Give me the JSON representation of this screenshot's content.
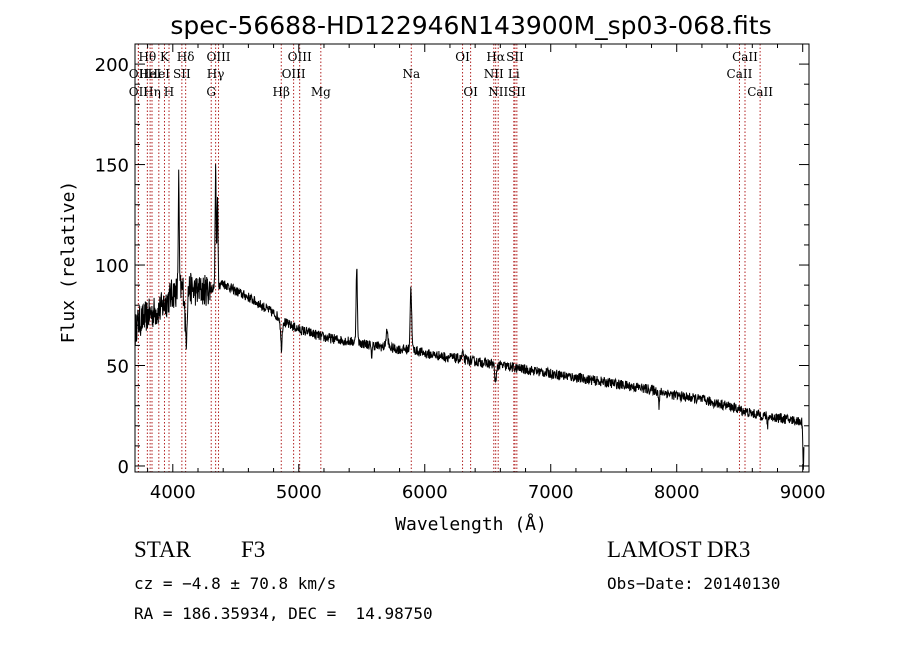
{
  "chart_data": {
    "type": "line",
    "title": "spec-56688-HD122946N143900M_sp03-068.fits",
    "xlabel": "Wavelength (Å)",
    "ylabel": "Flux (relative)",
    "xlim": [
      3700,
      9050
    ],
    "ylim": [
      -3,
      210
    ],
    "xticks": [
      4000,
      5000,
      6000,
      7000,
      8000,
      9000
    ],
    "yticks": [
      0,
      50,
      100,
      150,
      200
    ],
    "continuum": [
      [
        3700,
        70
      ],
      [
        3800,
        75
      ],
      [
        3900,
        78
      ],
      [
        4000,
        86
      ],
      [
        4100,
        89
      ],
      [
        4200,
        87
      ],
      [
        4300,
        88
      ],
      [
        4400,
        91
      ],
      [
        4500,
        87
      ],
      [
        4600,
        84
      ],
      [
        4700,
        80
      ],
      [
        4800,
        76
      ],
      [
        4900,
        71
      ],
      [
        5000,
        68
      ],
      [
        5100,
        66
      ],
      [
        5200,
        64
      ],
      [
        5300,
        63
      ],
      [
        5400,
        62
      ],
      [
        5500,
        61
      ],
      [
        5600,
        60
      ],
      [
        5700,
        59
      ],
      [
        5800,
        58
      ],
      [
        5900,
        58
      ],
      [
        6000,
        56
      ],
      [
        6100,
        55
      ],
      [
        6200,
        54
      ],
      [
        6300,
        53
      ],
      [
        6400,
        52
      ],
      [
        6500,
        51
      ],
      [
        6600,
        50
      ],
      [
        6700,
        49
      ],
      [
        6800,
        48
      ],
      [
        6900,
        47
      ],
      [
        7000,
        46
      ],
      [
        7200,
        44
      ],
      [
        7400,
        42
      ],
      [
        7600,
        40
      ],
      [
        7800,
        38
      ],
      [
        8000,
        35
      ],
      [
        8200,
        33
      ],
      [
        8400,
        30
      ],
      [
        8600,
        26
      ],
      [
        8800,
        24
      ],
      [
        9000,
        22
      ]
    ],
    "features": [
      [
        3700,
        -4,
        6
      ],
      [
        4047,
        55,
        4
      ],
      [
        4105,
        -25,
        8
      ],
      [
        4340,
        60,
        4
      ],
      [
        4355,
        45,
        4
      ],
      [
        4862,
        -14,
        6
      ],
      [
        5460,
        38,
        5
      ],
      [
        5577,
        -6,
        4
      ],
      [
        5700,
        8,
        8
      ],
      [
        5890,
        30,
        6
      ],
      [
        6300,
        4,
        4
      ],
      [
        6563,
        -10,
        6
      ],
      [
        7860,
        -8,
        4
      ],
      [
        8720,
        -5,
        4
      ],
      [
        9005,
        -22,
        4
      ]
    ],
    "noise": {
      "blue": 8,
      "red": 2.5,
      "break_wavelength": 4300
    },
    "line_markers": [
      {
        "wl": 3727,
        "label": "OII",
        "row": 2
      },
      {
        "wl": 3727,
        "label": "OII",
        "row": 3
      },
      {
        "wl": 3798,
        "label": "Hθ",
        "row": 1
      },
      {
        "wl": 3820,
        "label": "HeI",
        "row": 2
      },
      {
        "wl": 3835,
        "label": "Hη",
        "row": 3
      },
      {
        "wl": 3889,
        "label": "HeI",
        "row": 2
      },
      {
        "wl": 3934,
        "label": "K",
        "row": 1
      },
      {
        "wl": 3970,
        "label": "H",
        "row": 3
      },
      {
        "wl": 4072,
        "label": "SII",
        "row": 2
      },
      {
        "wl": 4102,
        "label": "Hδ",
        "row": 1
      },
      {
        "wl": 4305,
        "label": "G",
        "row": 3
      },
      {
        "wl": 4340,
        "label": "Hγ",
        "row": 2
      },
      {
        "wl": 4363,
        "label": "OIII",
        "row": 1
      },
      {
        "wl": 4861,
        "label": "Hβ",
        "row": 3
      },
      {
        "wl": 4959,
        "label": "OIII",
        "row": 2
      },
      {
        "wl": 5007,
        "label": "OIII",
        "row": 1
      },
      {
        "wl": 5175,
        "label": "Mg",
        "row": 3
      },
      {
        "wl": 5893,
        "label": "Na",
        "row": 2
      },
      {
        "wl": 6300,
        "label": "OI",
        "row": 1
      },
      {
        "wl": 6364,
        "label": "OI",
        "row": 3
      },
      {
        "wl": 6548,
        "label": "NII",
        "row": 2
      },
      {
        "wl": 6563,
        "label": "Hα",
        "row": 1
      },
      {
        "wl": 6583,
        "label": "NII",
        "row": 3
      },
      {
        "wl": 6707,
        "label": "Li",
        "row": 2
      },
      {
        "wl": 6716,
        "label": "SII",
        "row": 1
      },
      {
        "wl": 6731,
        "label": "SII",
        "row": 3
      },
      {
        "wl": 8498,
        "label": "CaII",
        "row": 2
      },
      {
        "wl": 8542,
        "label": "CaII",
        "row": 1
      },
      {
        "wl": 8662,
        "label": "CaII",
        "row": 3
      }
    ],
    "colors": {
      "spectrum": "#000000",
      "marker": "#b22222",
      "axis": "#000000"
    }
  },
  "info": {
    "class": "STAR",
    "subclass": "F3",
    "survey": "LAMOST DR3",
    "cz": "cz = −4.8 ± 70.8 km/s",
    "obsdate": "Obs−Date: 20140130",
    "coords": "RA = 186.35934, DEC =  14.98750"
  }
}
